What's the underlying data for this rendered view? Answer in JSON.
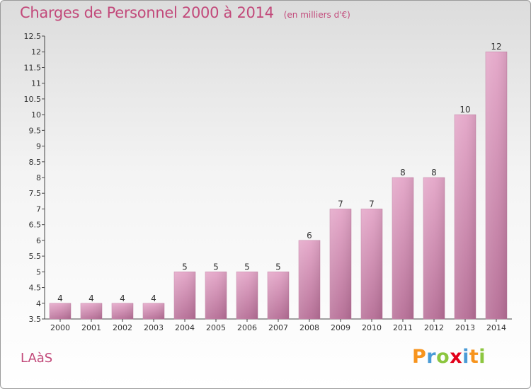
{
  "header": {
    "title": "Charges de Personnel 2000 à 2014",
    "subtitle": "(en milliers d'€)"
  },
  "footer": {
    "place": "LAàS",
    "logo": {
      "letters": [
        "P",
        "r",
        "o",
        "x",
        "i",
        "t",
        "i"
      ],
      "colors": [
        "#f7941d",
        "#4a9bd6",
        "#8cc63f",
        "#e2001a",
        "#4a9bd6",
        "#f7941d",
        "#8cc63f"
      ]
    }
  },
  "chart_data": {
    "type": "bar",
    "title": "Charges de Personnel 2000 à 2014",
    "categories": [
      "2000",
      "2001",
      "2002",
      "2003",
      "2004",
      "2005",
      "2006",
      "2007",
      "2008",
      "2009",
      "2010",
      "2011",
      "2012",
      "2013",
      "2014"
    ],
    "values": [
      4,
      4,
      4,
      4,
      5,
      5,
      5,
      5,
      6,
      7,
      7,
      8,
      8,
      10,
      12
    ],
    "data_labels": [
      "4",
      "4",
      "4",
      "4",
      "5",
      "5",
      "5",
      "5",
      "6",
      "7",
      "7",
      "8",
      "8",
      "10",
      "12"
    ],
    "ylim": [
      3.5,
      12.5
    ],
    "yticks": [
      3.5,
      4,
      4.5,
      5,
      5.5,
      6,
      6.5,
      7,
      7.5,
      8,
      8.5,
      9,
      9.5,
      10,
      10.5,
      11,
      11.5,
      12,
      12.5
    ],
    "ytick_labels": [
      "3.5",
      "4",
      "4.5",
      "5",
      "5.5",
      "6",
      "6.5",
      "7",
      "7.5",
      "8",
      "8.5",
      "9",
      "9.5",
      "10",
      "10.5",
      "11",
      "11.5",
      "12",
      "12.5"
    ],
    "grid": false,
    "bar_color": "#d98bb2"
  }
}
